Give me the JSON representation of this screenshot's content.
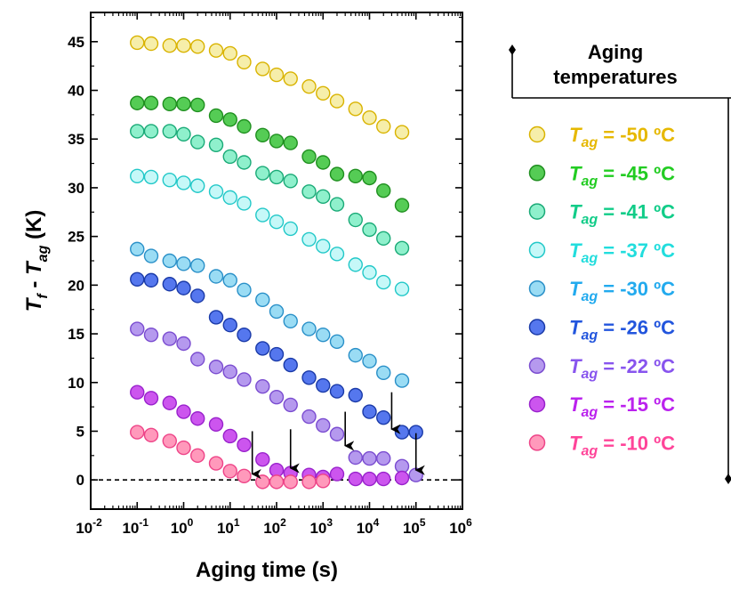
{
  "chart_data": {
    "type": "scatter",
    "xlabel": "Aging time (s)",
    "ylabel_parts": [
      "T",
      "f",
      " - T",
      "ag",
      " (K)"
    ],
    "x_scale": "log",
    "xlim": [
      0.01,
      1000000
    ],
    "ylim": [
      -3,
      48
    ],
    "x_ticks": [
      0.01,
      0.1,
      1,
      10,
      100,
      1000,
      10000,
      100000,
      1000000
    ],
    "x_tick_labels": [
      {
        "base": "10",
        "exp": "-2"
      },
      {
        "base": "10",
        "exp": "-1"
      },
      {
        "base": "10",
        "exp": "0"
      },
      {
        "base": "10",
        "exp": "1"
      },
      {
        "base": "10",
        "exp": "2"
      },
      {
        "base": "10",
        "exp": "3"
      },
      {
        "base": "10",
        "exp": "4"
      },
      {
        "base": "10",
        "exp": "5"
      },
      {
        "base": "10",
        "exp": "6"
      }
    ],
    "y_ticks": [
      0,
      5,
      10,
      15,
      20,
      25,
      30,
      35,
      40,
      45
    ],
    "y_tick_labels": [
      "0",
      "5",
      "10",
      "15",
      "20",
      "25",
      "30",
      "35",
      "40",
      "45"
    ],
    "reference_line": {
      "y": 0,
      "style": "dashed"
    },
    "legend": {
      "title_lines": [
        "Aging",
        "temperatures"
      ],
      "placement": "right"
    },
    "series": [
      {
        "name": "T_ag = -50 ºC",
        "label_sym": "T",
        "label_sub": "ag",
        "label_val": " = -50 ºC",
        "fill": "#f6eeaa",
        "stroke": "#d9b300",
        "label_color": "#e6b800",
        "x": [
          0.1,
          0.2,
          0.5,
          1,
          2,
          5,
          10,
          20,
          50,
          100,
          200,
          500,
          1000,
          2000,
          5000,
          10000,
          20000,
          50000
        ],
        "y": [
          44.9,
          44.8,
          44.6,
          44.6,
          44.5,
          44.1,
          43.8,
          42.9,
          42.2,
          41.6,
          41.2,
          40.4,
          39.7,
          38.9,
          38.1,
          37.2,
          36.3,
          35.7
        ]
      },
      {
        "name": "T_ag = -45 ºC",
        "label_sym": "T",
        "label_sub": "ag",
        "label_val": " = -45 ºC",
        "fill": "#55cc55",
        "stroke": "#1f8f1f",
        "label_color": "#22cc22",
        "x": [
          0.1,
          0.2,
          0.5,
          1,
          2,
          5,
          10,
          20,
          50,
          100,
          200,
          500,
          1000,
          2000,
          5000,
          10000,
          20000,
          50000
        ],
        "y": [
          38.7,
          38.7,
          38.6,
          38.6,
          38.5,
          37.4,
          37.0,
          36.3,
          35.4,
          34.8,
          34.6,
          33.2,
          32.6,
          31.4,
          31.2,
          31.0,
          29.7,
          28.2
        ]
      },
      {
        "name": "T_ag = -41 ºC",
        "label_sym": "T",
        "label_sub": "ag",
        "label_val": " = -41 ºC",
        "fill": "#8ff0cc",
        "stroke": "#1aaa77",
        "label_color": "#11cc88",
        "x": [
          0.1,
          0.2,
          0.5,
          1,
          2,
          5,
          10,
          20,
          50,
          100,
          200,
          500,
          1000,
          2000,
          5000,
          10000,
          20000,
          50000
        ],
        "y": [
          35.8,
          35.8,
          35.8,
          35.5,
          34.7,
          34.4,
          33.2,
          32.6,
          31.5,
          31.1,
          30.7,
          29.6,
          29.1,
          28.3,
          26.7,
          25.7,
          24.8,
          23.8
        ]
      },
      {
        "name": "T_ag = -37 ºC",
        "label_sym": "T",
        "label_sub": "ag",
        "label_val": " = -37 ºC",
        "fill": "#c6f8f8",
        "stroke": "#22c8c8",
        "label_color": "#22dddd",
        "x": [
          0.1,
          0.2,
          0.5,
          1,
          2,
          5,
          10,
          20,
          50,
          100,
          200,
          500,
          1000,
          2000,
          5000,
          10000,
          20000,
          50000
        ],
        "y": [
          31.2,
          31.1,
          30.8,
          30.5,
          30.2,
          29.6,
          29.0,
          28.4,
          27.2,
          26.5,
          25.8,
          24.7,
          24.0,
          23.2,
          22.1,
          21.3,
          20.3,
          19.6
        ]
      },
      {
        "name": "T_ag = -30 ºC",
        "label_sym": "T",
        "label_sub": "ag",
        "label_val": " = -30 ºC",
        "fill": "#9adcf4",
        "stroke": "#2a90c8",
        "label_color": "#22aaee",
        "x": [
          0.1,
          0.2,
          0.5,
          1,
          2,
          5,
          10,
          20,
          50,
          100,
          200,
          500,
          1000,
          2000,
          5000,
          10000,
          20000,
          50000
        ],
        "y": [
          23.7,
          23.0,
          22.5,
          22.2,
          22.0,
          20.9,
          20.5,
          19.5,
          18.5,
          17.3,
          16.3,
          15.5,
          14.9,
          14.2,
          12.8,
          12.2,
          11.0,
          10.2
        ]
      },
      {
        "name": "T_ag = -26 ºC",
        "label_sym": "T",
        "label_sub": "ag",
        "label_val": " = -26 ºC",
        "fill": "#5577ee",
        "stroke": "#1a3aa8",
        "label_color": "#2255dd",
        "x": [
          0.1,
          0.2,
          0.5,
          1,
          2,
          5,
          10,
          20,
          50,
          100,
          200,
          500,
          1000,
          2000,
          5000,
          10000,
          20000,
          50000,
          100000
        ],
        "y": [
          20.6,
          20.5,
          20.1,
          19.7,
          18.9,
          16.7,
          15.9,
          14.9,
          13.5,
          12.9,
          11.8,
          10.5,
          9.7,
          9.1,
          8.7,
          7.0,
          6.4,
          4.9,
          4.9
        ]
      },
      {
        "name": "T_ag = -22 ºC",
        "label_sym": "T",
        "label_sub": "ag",
        "label_val": " = -22 ºC",
        "fill": "#b599ee",
        "stroke": "#7a4cd0",
        "label_color": "#8855ee",
        "x": [
          0.1,
          0.2,
          0.5,
          1,
          2,
          5,
          10,
          20,
          50,
          100,
          200,
          500,
          1000,
          2000,
          5000,
          10000,
          20000,
          50000,
          100000
        ],
        "y": [
          15.5,
          14.9,
          14.5,
          14.0,
          12.4,
          11.6,
          11.1,
          10.3,
          9.6,
          8.5,
          7.7,
          6.5,
          5.6,
          4.7,
          2.3,
          2.2,
          2.2,
          1.4,
          0.5
        ]
      },
      {
        "name": "T_ag = -15 ºC",
        "label_sym": "T",
        "label_sub": "ag",
        "label_val": " = -15 ºC",
        "fill": "#cc55ee",
        "stroke": "#9922cc",
        "label_color": "#bb22ee",
        "x": [
          0.1,
          0.2,
          0.5,
          1,
          2,
          5,
          10,
          20,
          50,
          100,
          200,
          500,
          1000,
          2000,
          5000,
          10000,
          20000,
          50000
        ],
        "y": [
          9.0,
          8.4,
          7.9,
          7.0,
          6.3,
          5.7,
          4.5,
          3.6,
          2.1,
          1.0,
          0.7,
          0.5,
          0.3,
          0.6,
          0.1,
          0.1,
          0.1,
          0.2
        ]
      },
      {
        "name": "T_ag = -10 ºC",
        "label_sym": "T",
        "label_sub": "ag",
        "label_val": " = -10 ºC",
        "fill": "#ff99bb",
        "stroke": "#ee4488",
        "label_color": "#ff4499",
        "x": [
          0.1,
          0.2,
          0.5,
          1,
          2,
          5,
          10,
          20,
          50,
          100,
          200,
          500,
          1000
        ],
        "y": [
          4.9,
          4.6,
          4.0,
          3.3,
          2.5,
          1.7,
          0.9,
          0.4,
          -0.2,
          -0.2,
          -0.2,
          -0.2,
          -0.1
        ]
      }
    ],
    "annotations": [
      {
        "type": "arrow",
        "x": 30,
        "y_from": 5.0,
        "y_to": 0.6
      },
      {
        "type": "arrow",
        "x": 200,
        "y_from": 5.2,
        "y_to": 1.2
      },
      {
        "type": "arrow",
        "x": 3000,
        "y_from": 7.0,
        "y_to": 3.5
      },
      {
        "type": "arrow",
        "x": 30000,
        "y_from": 9.0,
        "y_to": 5.2
      },
      {
        "type": "arrow",
        "x": 100000,
        "y_from": 4.8,
        "y_to": 1.0
      }
    ]
  }
}
